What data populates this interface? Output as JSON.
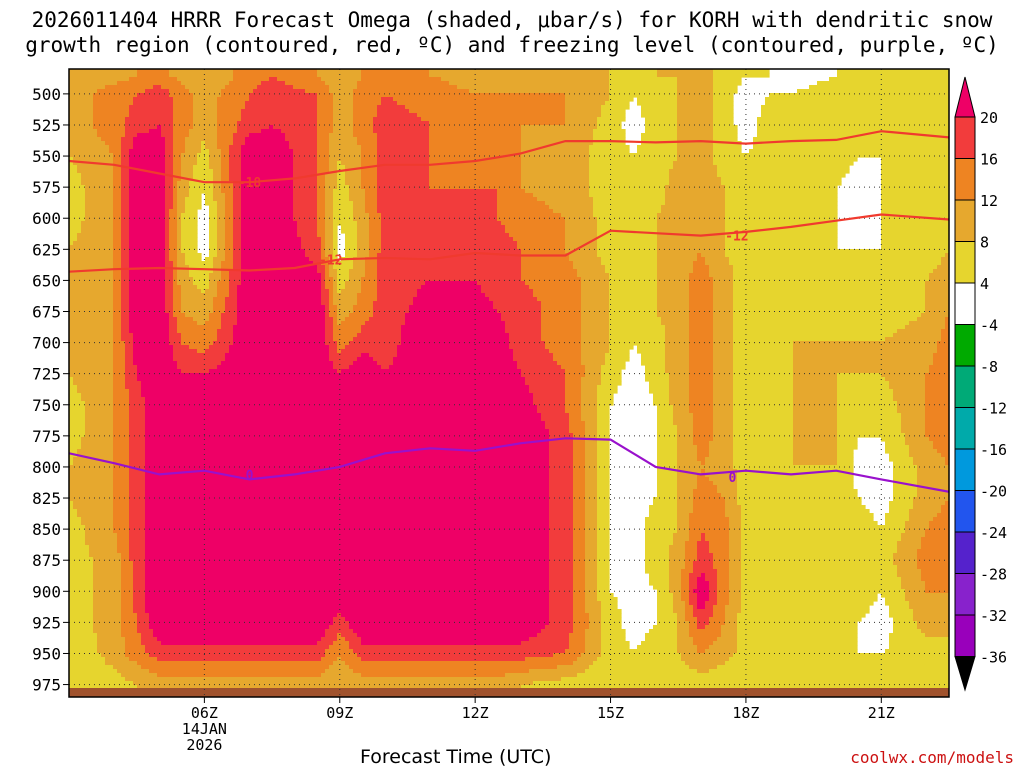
{
  "chart_data": {
    "type": "heatmap",
    "title_line1": "2026011404 HRRR Forecast Omega (shaded, μbar/s) for KORH with dendritic snow",
    "title_line2": "growth region (contoured, red, ºC) and freezing level (contoured, purple, ºC)",
    "xlabel": "Forecast Time (UTC)",
    "credit": "coolwx.com/models",
    "x_range_hours": [
      3.0,
      22.5
    ],
    "y_range_hPa": [
      480,
      985
    ],
    "x_ticks": [
      {
        "hour": 6,
        "label": "06Z",
        "sub1": "14JAN",
        "sub2": "2026"
      },
      {
        "hour": 9,
        "label": "09Z"
      },
      {
        "hour": 12,
        "label": "12Z"
      },
      {
        "hour": 15,
        "label": "15Z"
      },
      {
        "hour": 18,
        "label": "18Z"
      },
      {
        "hour": 21,
        "label": "21Z"
      }
    ],
    "y_ticks": [
      500,
      525,
      550,
      575,
      600,
      625,
      650,
      675,
      700,
      725,
      750,
      775,
      800,
      825,
      850,
      875,
      900,
      925,
      950,
      975
    ],
    "colorbar": {
      "levels": [
        20,
        16,
        12,
        8,
        4,
        -4,
        -8,
        -12,
        -16,
        -20,
        -24,
        -28,
        -32,
        -36
      ],
      "colors": [
        "#ee0066",
        "#f23c3c",
        "#ee8422",
        "#e6a82e",
        "#e6d52e",
        "#ffffff",
        "#00aa00",
        "#00aa77",
        "#00aaaa",
        "#0099dd",
        "#2255ee",
        "#5522cc",
        "#8822cc",
        "#9900bb",
        "#999999",
        "#000000"
      ]
    },
    "omega_field": {
      "hours": [
        3.0,
        4.0,
        4.5,
        5.0,
        5.5,
        6.0,
        7.0,
        7.5,
        8.5,
        9.0,
        9.5,
        10.0,
        11.0,
        12.0,
        12.5,
        13.0,
        14.0,
        15.0,
        15.5,
        16.0,
        16.5,
        17.0,
        17.5,
        18.0,
        18.5,
        19.0,
        20.0,
        20.5,
        21.0,
        22.0,
        22.5
      ],
      "pressure_hPa": [
        485,
        500,
        525,
        550,
        575,
        600,
        625,
        650,
        675,
        700,
        725,
        750,
        775,
        800,
        825,
        850,
        875,
        900,
        925,
        950,
        975
      ],
      "units": "μbar/s",
      "values": [
        [
          8,
          10,
          10,
          8,
          6,
          6,
          8,
          8,
          8,
          8,
          8,
          6,
          6,
          8,
          8,
          6,
          6,
          6,
          6,
          4,
          4
        ],
        [
          10,
          14,
          14,
          12,
          12,
          12,
          12,
          12,
          12,
          12,
          12,
          12,
          12,
          12,
          12,
          12,
          10,
          10,
          10,
          10,
          6
        ],
        [
          12,
          16,
          18,
          24,
          24,
          24,
          24,
          24,
          24,
          22,
          20,
          18,
          18,
          18,
          18,
          18,
          18,
          18,
          16,
          14,
          8
        ],
        [
          14,
          18,
          20,
          24,
          24,
          24,
          24,
          24,
          24,
          24,
          24,
          24,
          24,
          24,
          24,
          24,
          24,
          24,
          24,
          18,
          10
        ],
        [
          10,
          14,
          14,
          12,
          10,
          8,
          8,
          10,
          12,
          16,
          20,
          22,
          24,
          24,
          24,
          24,
          24,
          24,
          24,
          18,
          10
        ],
        [
          8,
          10,
          10,
          6,
          4,
          2,
          2,
          6,
          10,
          14,
          20,
          24,
          24,
          24,
          24,
          24,
          24,
          24,
          24,
          18,
          10
        ],
        [
          14,
          16,
          18,
          24,
          24,
          24,
          24,
          24,
          24,
          24,
          24,
          24,
          24,
          24,
          24,
          24,
          24,
          24,
          24,
          18,
          10
        ],
        [
          16,
          18,
          20,
          24,
          24,
          24,
          24,
          24,
          24,
          24,
          24,
          24,
          24,
          24,
          24,
          24,
          24,
          24,
          24,
          18,
          10
        ],
        [
          12,
          16,
          16,
          16,
          16,
          16,
          18,
          22,
          24,
          24,
          24,
          24,
          24,
          24,
          24,
          24,
          24,
          24,
          24,
          18,
          10
        ],
        [
          8,
          10,
          10,
          8,
          6,
          4,
          2,
          6,
          10,
          14,
          20,
          24,
          24,
          24,
          24,
          24,
          24,
          24,
          18,
          12,
          8
        ],
        [
          12,
          14,
          14,
          12,
          12,
          10,
          10,
          12,
          14,
          18,
          24,
          24,
          24,
          24,
          24,
          24,
          24,
          24,
          24,
          18,
          10
        ],
        [
          14,
          16,
          18,
          18,
          18,
          18,
          18,
          18,
          18,
          18,
          20,
          24,
          24,
          24,
          24,
          24,
          24,
          24,
          24,
          18,
          10
        ],
        [
          12,
          14,
          16,
          16,
          16,
          18,
          18,
          20,
          22,
          24,
          24,
          24,
          24,
          24,
          24,
          24,
          24,
          24,
          24,
          18,
          10
        ],
        [
          10,
          12,
          14,
          14,
          16,
          18,
          18,
          20,
          22,
          24,
          24,
          24,
          24,
          24,
          24,
          24,
          24,
          24,
          24,
          18,
          10
        ],
        [
          10,
          12,
          14,
          14,
          16,
          16,
          18,
          18,
          20,
          22,
          24,
          24,
          24,
          24,
          24,
          24,
          24,
          24,
          24,
          18,
          10
        ],
        [
          10,
          12,
          12,
          12,
          12,
          14,
          16,
          16,
          18,
          18,
          20,
          22,
          24,
          24,
          24,
          24,
          24,
          24,
          24,
          18,
          8
        ],
        [
          10,
          12,
          12,
          10,
          10,
          12,
          12,
          14,
          14,
          14,
          16,
          16,
          18,
          18,
          18,
          18,
          18,
          18,
          18,
          16,
          6
        ],
        [
          8,
          8,
          6,
          6,
          6,
          6,
          6,
          8,
          8,
          8,
          6,
          4,
          4,
          4,
          4,
          4,
          4,
          4,
          6,
          6,
          4
        ],
        [
          6,
          4,
          2,
          4,
          6,
          6,
          6,
          6,
          6,
          4,
          2,
          1,
          0,
          1,
          2,
          2,
          2,
          2,
          2,
          4,
          4
        ],
        [
          8,
          6,
          6,
          6,
          6,
          8,
          8,
          8,
          8,
          6,
          6,
          4,
          4,
          4,
          4,
          6,
          6,
          4,
          4,
          6,
          4
        ],
        [
          8,
          8,
          8,
          8,
          10,
          10,
          10,
          10,
          10,
          10,
          10,
          10,
          8,
          8,
          8,
          8,
          10,
          10,
          8,
          8,
          4
        ],
        [
          10,
          10,
          10,
          10,
          12,
          12,
          12,
          14,
          14,
          14,
          14,
          14,
          14,
          12,
          14,
          16,
          18,
          24,
          18,
          12,
          6
        ],
        [
          6,
          6,
          6,
          6,
          8,
          8,
          8,
          10,
          10,
          10,
          10,
          10,
          10,
          10,
          12,
          14,
          14,
          14,
          12,
          10,
          4
        ],
        [
          4,
          2,
          2,
          4,
          4,
          4,
          6,
          6,
          6,
          6,
          6,
          6,
          6,
          6,
          6,
          6,
          6,
          6,
          6,
          6,
          4
        ],
        [
          4,
          4,
          6,
          6,
          6,
          6,
          6,
          6,
          6,
          6,
          6,
          6,
          6,
          6,
          6,
          6,
          6,
          6,
          6,
          6,
          4
        ],
        [
          2,
          4,
          6,
          6,
          6,
          6,
          6,
          6,
          6,
          8,
          8,
          8,
          8,
          8,
          6,
          6,
          6,
          6,
          6,
          6,
          4
        ],
        [
          4,
          6,
          6,
          6,
          4,
          4,
          4,
          6,
          6,
          8,
          8,
          8,
          8,
          8,
          6,
          6,
          6,
          6,
          6,
          6,
          4
        ],
        [
          4,
          6,
          6,
          4,
          2,
          2,
          4,
          6,
          6,
          8,
          8,
          6,
          4,
          2,
          4,
          6,
          6,
          6,
          4,
          4,
          4
        ],
        [
          6,
          6,
          6,
          4,
          4,
          4,
          4,
          6,
          6,
          8,
          8,
          6,
          4,
          2,
          2,
          4,
          6,
          4,
          2,
          4,
          4
        ],
        [
          6,
          6,
          6,
          6,
          6,
          6,
          6,
          8,
          8,
          10,
          12,
          12,
          12,
          10,
          10,
          12,
          14,
          12,
          10,
          6,
          4
        ],
        [
          4,
          6,
          6,
          6,
          6,
          6,
          8,
          10,
          12,
          14,
          14,
          14,
          14,
          12,
          12,
          14,
          14,
          12,
          10,
          6,
          4
        ]
      ]
    },
    "dgz_contours": [
      {
        "label": "-18",
        "points": [
          [
            3.0,
            554
          ],
          [
            4.0,
            557
          ],
          [
            5.0,
            564
          ],
          [
            6.0,
            571
          ],
          [
            7.0,
            571
          ],
          [
            8.0,
            568
          ],
          [
            9.0,
            562
          ],
          [
            10.0,
            557
          ],
          [
            11.0,
            557
          ],
          [
            12.0,
            554
          ],
          [
            13.0,
            548
          ],
          [
            14.0,
            538
          ],
          [
            15.0,
            538
          ],
          [
            16.0,
            539
          ],
          [
            17.0,
            538
          ],
          [
            18.0,
            540
          ],
          [
            19.0,
            538
          ],
          [
            20.0,
            537
          ],
          [
            21.0,
            530
          ],
          [
            22.5,
            535
          ]
        ]
      },
      {
        "label": "-12",
        "points": [
          [
            3.0,
            643
          ],
          [
            4.0,
            641
          ],
          [
            5.0,
            640
          ],
          [
            6.0,
            641
          ],
          [
            7.0,
            642
          ],
          [
            8.0,
            640
          ],
          [
            9.0,
            633
          ],
          [
            10.0,
            632
          ],
          [
            11.0,
            633
          ],
          [
            12.0,
            628
          ],
          [
            13.0,
            630
          ],
          [
            14.0,
            630
          ],
          [
            15.0,
            610
          ],
          [
            16.0,
            612
          ],
          [
            17.0,
            614
          ],
          [
            18.0,
            611
          ],
          [
            19.0,
            607
          ],
          [
            20.0,
            602
          ],
          [
            21.0,
            597
          ],
          [
            22.5,
            601
          ]
        ]
      }
    ],
    "freezing_contour": {
      "label": "0",
      "points": [
        [
          3.0,
          789
        ],
        [
          4.0,
          797
        ],
        [
          5.0,
          806
        ],
        [
          6.0,
          803
        ],
        [
          7.0,
          810
        ],
        [
          8.0,
          806
        ],
        [
          9.0,
          800
        ],
        [
          10.0,
          789
        ],
        [
          11.0,
          785
        ],
        [
          12.0,
          787
        ],
        [
          13.0,
          781
        ],
        [
          14.0,
          777
        ],
        [
          15.0,
          778
        ],
        [
          16.0,
          800
        ],
        [
          17.0,
          806
        ],
        [
          18.0,
          803
        ],
        [
          19.0,
          806
        ],
        [
          20.0,
          803
        ],
        [
          21.0,
          810
        ],
        [
          22.5,
          820
        ]
      ]
    },
    "contour_label_positions": [
      {
        "label": "-18",
        "hour": 7.0,
        "p": 571
      },
      {
        "label": "-12",
        "hour": 8.8,
        "p": 633
      },
      {
        "label": "-12",
        "hour": 17.8,
        "p": 614
      },
      {
        "label": "0",
        "hour": 7.0,
        "p": 806
      },
      {
        "label": "0",
        "hour": 17.7,
        "p": 808
      }
    ]
  }
}
